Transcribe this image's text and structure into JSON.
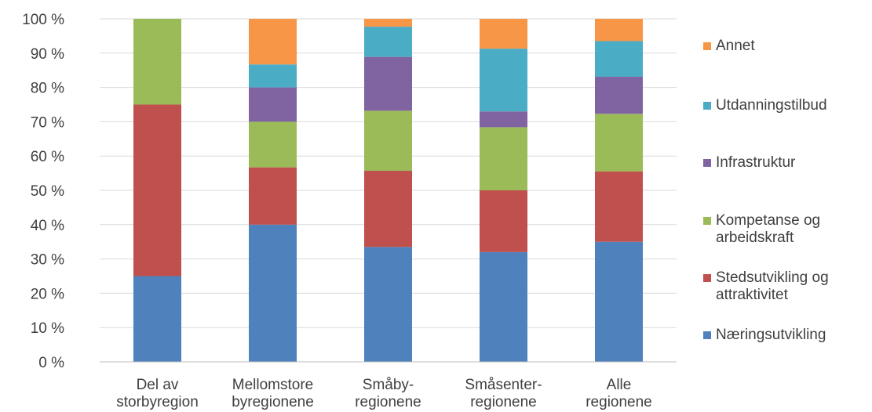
{
  "chart_data": {
    "type": "bar",
    "stacked": true,
    "percent_stacked": true,
    "categories": [
      "Del av storbyregion",
      "Mellomstore byregionene",
      "Småby-regionene",
      "Småsenter-regionene",
      "Alle regionene"
    ],
    "category_labels": [
      [
        "Del av",
        "storbyregion"
      ],
      [
        "Mellomstore",
        "byregionene"
      ],
      [
        "Småby-",
        "regionene"
      ],
      [
        "Småsenter-",
        "regionene"
      ],
      [
        "Alle",
        "regionene"
      ]
    ],
    "series": [
      {
        "name": "Næringsutvikling",
        "color": "#4F81BD",
        "values": [
          25,
          40,
          33.5,
          32,
          35
        ]
      },
      {
        "name": "Stedsutvikling og attraktivitet",
        "color": "#C0504D",
        "values": [
          50,
          16.7,
          22.2,
          18,
          20.5
        ]
      },
      {
        "name": "Kompetanse og arbeidskraft",
        "color": "#9BBB59",
        "values": [
          25,
          13.3,
          17.5,
          18.4,
          16.8
        ]
      },
      {
        "name": "Infrastruktur",
        "color": "#8064A2",
        "values": [
          0,
          10,
          15.7,
          4.6,
          10.8
        ]
      },
      {
        "name": "Utdanningstilbud",
        "color": "#4BACC6",
        "values": [
          0,
          6.7,
          8.8,
          18.3,
          10.4
        ]
      },
      {
        "name": "Annet",
        "color": "#F79646",
        "values": [
          0,
          13.3,
          2.3,
          8.7,
          6.5
        ]
      }
    ],
    "yticks": [
      "0 %",
      "10 %",
      "20 %",
      "30 %",
      "40 %",
      "50 %",
      "60 %",
      "70 %",
      "80 %",
      "90 %",
      "100 %"
    ],
    "ylim": [
      0,
      100
    ],
    "grid": true,
    "legend_position": "right",
    "title": "",
    "xlabel": "",
    "ylabel": ""
  },
  "legend": {
    "items": [
      {
        "label": "Annet",
        "color": "#F79646"
      },
      {
        "label": "Utdanningstilbud",
        "color": "#4BACC6"
      },
      {
        "label": "Infrastruktur",
        "color": "#8064A2"
      },
      {
        "label": "Kompetanse og\narbeidskraft",
        "color": "#9BBB59"
      },
      {
        "label": "Stedsutvikling og\nattraktivitet",
        "color": "#C0504D"
      },
      {
        "label": "Næringsutvikling",
        "color": "#4F81BD"
      }
    ]
  }
}
